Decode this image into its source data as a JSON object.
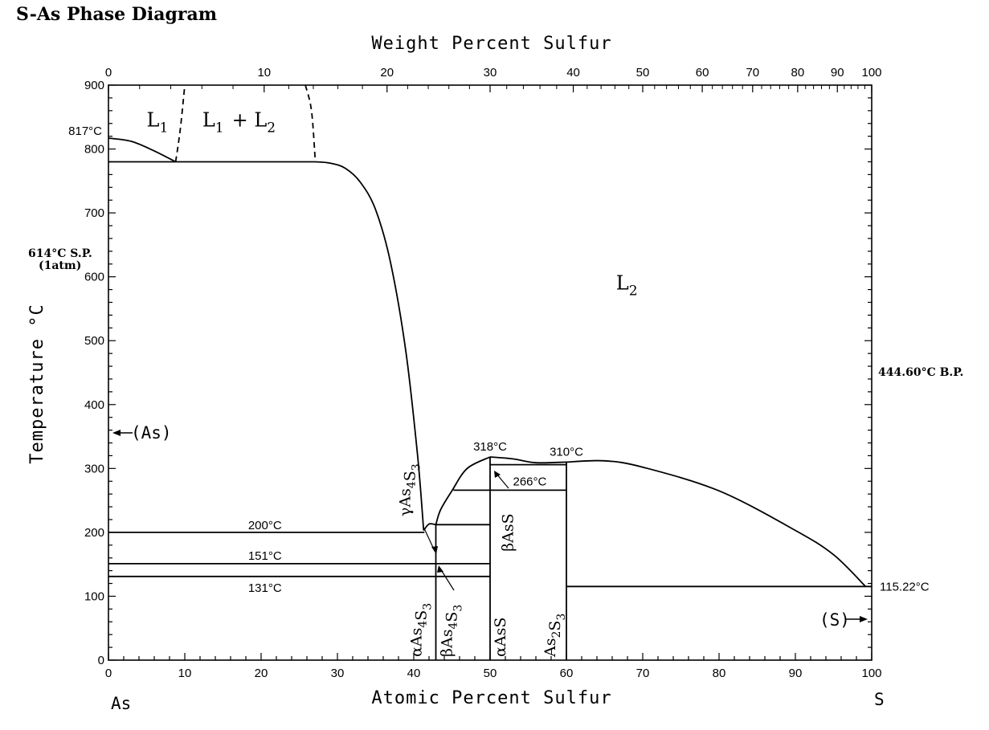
{
  "chart_data": {
    "type": "line",
    "title": "S-As Phase Diagram",
    "xlabel": "Atomic Percent Sulfur",
    "x2label": "Weight Percent Sulfur",
    "ylabel": "Temperature °C",
    "xlim": [
      0,
      100
    ],
    "ylim": [
      0,
      900
    ],
    "grid": false,
    "x_ticks": [
      0,
      10,
      20,
      30,
      40,
      50,
      60,
      70,
      80,
      90,
      100
    ],
    "y_ticks": [
      0,
      100,
      200,
      300,
      400,
      500,
      600,
      700,
      800,
      900
    ],
    "x2_ticks": [
      {
        "label": "0",
        "at": 0
      },
      {
        "label": "10",
        "at": 20.4
      },
      {
        "label": "20",
        "at": 36.5
      },
      {
        "label": "30",
        "at": 50.0
      },
      {
        "label": "40",
        "at": 60.9
      },
      {
        "label": "50",
        "at": 70.0
      },
      {
        "label": "60",
        "at": 77.8
      },
      {
        "label": "70",
        "at": 84.4
      },
      {
        "label": "80",
        "at": 90.3
      },
      {
        "label": "90",
        "at": 95.5
      },
      {
        "label": "100",
        "at": 100
      }
    ],
    "end_labels": {
      "left": "As",
      "right": "S"
    },
    "boundaries": [
      {
        "style": "solid",
        "points": [
          [
            0,
            817
          ],
          [
            3,
            812
          ],
          [
            6,
            797
          ],
          [
            8.8,
            780
          ]
        ]
      },
      {
        "style": "dashed",
        "points": [
          [
            8.8,
            780
          ],
          [
            9.4,
            830
          ],
          [
            10,
            900
          ]
        ]
      },
      {
        "style": "dashed",
        "points": [
          [
            25.8,
            900
          ],
          [
            26.6,
            860
          ],
          [
            27.1,
            780
          ]
        ]
      },
      {
        "style": "solid",
        "points": [
          [
            27.1,
            780
          ],
          [
            29,
            778
          ],
          [
            31,
            770
          ],
          [
            33,
            748
          ],
          [
            35,
            705
          ],
          [
            37,
            620
          ],
          [
            39,
            480
          ],
          [
            40.5,
            320
          ],
          [
            41.3,
            203
          ]
        ]
      },
      {
        "style": "solid",
        "points": [
          [
            0,
            780
          ],
          [
            27.1,
            780
          ]
        ]
      },
      {
        "style": "solid",
        "points": [
          [
            41.3,
            203
          ],
          [
            42,
            213
          ],
          [
            42.9,
            212
          ]
        ]
      },
      {
        "style": "solid",
        "points": [
          [
            42.9,
            212
          ],
          [
            43.5,
            235
          ],
          [
            45,
            265
          ],
          [
            47,
            300
          ],
          [
            50,
            318
          ]
        ]
      },
      {
        "style": "solid",
        "points": [
          [
            50,
            318
          ],
          [
            53,
            315
          ],
          [
            56,
            309
          ],
          [
            60,
            310
          ]
        ]
      },
      {
        "style": "solid",
        "points": [
          [
            60,
            310
          ],
          [
            65,
            312
          ],
          [
            70,
            302
          ],
          [
            80,
            265
          ],
          [
            90,
            203
          ],
          [
            95,
            165
          ],
          [
            99.2,
            115.22
          ]
        ]
      },
      {
        "style": "solid",
        "points": [
          [
            0,
            200
          ],
          [
            41.4,
            200
          ]
        ]
      },
      {
        "style": "solid",
        "points": [
          [
            0,
            151
          ],
          [
            42.9,
            151
          ]
        ]
      },
      {
        "style": "solid",
        "points": [
          [
            0,
            131
          ],
          [
            42.9,
            131
          ]
        ]
      },
      {
        "style": "solid",
        "points": [
          [
            42.9,
            212
          ],
          [
            50,
            212
          ]
        ]
      },
      {
        "style": "solid",
        "points": [
          [
            42.9,
            151
          ],
          [
            50,
            151
          ]
        ]
      },
      {
        "style": "solid",
        "points": [
          [
            42.9,
            131
          ],
          [
            50,
            131
          ]
        ]
      },
      {
        "style": "solid",
        "points": [
          [
            45.2,
            266
          ],
          [
            60,
            266
          ]
        ]
      },
      {
        "style": "solid",
        "points": [
          [
            50,
            306
          ],
          [
            60,
            306
          ]
        ]
      },
      {
        "style": "solid",
        "points": [
          [
            60,
            115.22
          ],
          [
            100,
            115.22
          ]
        ]
      },
      {
        "style": "solid",
        "points": [
          [
            42.9,
            0
          ],
          [
            42.9,
            212
          ]
        ]
      },
      {
        "style": "solid",
        "points": [
          [
            50,
            0
          ],
          [
            50,
            318
          ]
        ]
      },
      {
        "style": "solid",
        "points": [
          [
            60,
            0
          ],
          [
            60,
            310
          ]
        ]
      }
    ],
    "phase_regions": [
      {
        "label": "L",
        "sub": "1",
        "x": 5,
        "y": 835
      },
      {
        "label": "L",
        "sub": "1",
        "x2": "+ L",
        "sub2": "2",
        "x": 12.3,
        "y": 835
      },
      {
        "label": "L",
        "sub": "2",
        "x": 66.5,
        "y": 580
      }
    ],
    "temperature_labels": [
      {
        "text": "817°C",
        "x": 0,
        "y": 817
      },
      {
        "text": "200°C",
        "x": 20.5,
        "y": 200
      },
      {
        "text": "151°C",
        "x": 20.5,
        "y": 151
      },
      {
        "text": "131°C",
        "x": 20.5,
        "y": 131
      },
      {
        "text": "318°C",
        "x": 50,
        "y": 318
      },
      {
        "text": "310°C",
        "x": 60,
        "y": 310
      },
      {
        "text": "266°C",
        "x": 53,
        "y": 266
      },
      {
        "text": "115.22°C",
        "x": 100,
        "y": 115.22
      }
    ],
    "side_annotations": {
      "left_sp_line1": "614°C S.P.",
      "left_sp_line2": "(1atm)",
      "right_bp": "444.60°C B.P.",
      "as_marker": "(As)",
      "s_marker": "(S)"
    },
    "compound_labels": [
      {
        "greek": "γ",
        "formula": "As",
        "sub1": "4",
        "mid": "S",
        "sub2": "3",
        "x": 39.5,
        "y": 225
      },
      {
        "greek": "α",
        "formula": "As",
        "sub1": "4",
        "mid": "S",
        "sub2": "3",
        "x": 41.0,
        "y": 5
      },
      {
        "greek": "β",
        "formula": "As",
        "sub1": "4",
        "mid": "S",
        "sub2": "3",
        "x": 45.0,
        "y": 5
      },
      {
        "greek": "β",
        "formula": "AsS",
        "sub1": "",
        "mid": "",
        "sub2": "",
        "x": 53.0,
        "y": 170
      },
      {
        "greek": "α",
        "formula": "AsS",
        "sub1": "",
        "mid": "",
        "sub2": "",
        "x": 52.0,
        "y": 5
      },
      {
        "greek": "",
        "formula": "As",
        "sub1": "2",
        "mid": "S",
        "sub2": "3",
        "x": 58.5,
        "y": 5
      }
    ]
  }
}
